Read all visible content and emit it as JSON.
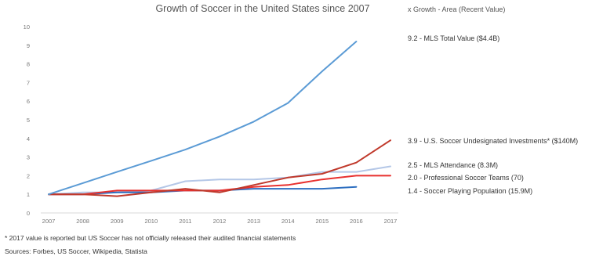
{
  "chart_data": {
    "type": "line",
    "title": "Growth of Soccer in the United States since 2007",
    "legend_header": "x Growth - Area (Recent Value)",
    "x": [
      "2007",
      "2008",
      "2009",
      "2010",
      "2011",
      "2012",
      "2013",
      "2014",
      "2015",
      "2016",
      "2017"
    ],
    "ylim": [
      0,
      10
    ],
    "yticks": [
      "0",
      "1",
      "2",
      "3",
      "4",
      "5",
      "6",
      "7",
      "8",
      "9",
      "10"
    ],
    "grid": false,
    "series": [
      {
        "name": "9.2 - MLS Total Value ($4.4B)",
        "color": "#5b9bd5",
        "values": [
          1.0,
          1.6,
          2.2,
          2.8,
          3.4,
          4.1,
          4.9,
          5.9,
          7.6,
          9.2,
          null
        ]
      },
      {
        "name": "3.9 - U.S. Soccer Undesignated Investments* ($140M)",
        "color": "#c0392b",
        "values": [
          1.0,
          1.0,
          0.9,
          1.1,
          1.3,
          1.1,
          1.5,
          1.9,
          2.1,
          2.7,
          3.9
        ]
      },
      {
        "name": "2.5 - MLS Attendance (8.3M)",
        "color": "#b4c7e7",
        "values": [
          1.0,
          1.1,
          1.1,
          1.2,
          1.7,
          1.8,
          1.8,
          1.9,
          2.2,
          2.2,
          2.5
        ]
      },
      {
        "name": "2.0 - Professional Soccer Teams (70)",
        "color": "#e8312f",
        "values": [
          1.0,
          1.0,
          1.2,
          1.2,
          1.2,
          1.2,
          1.4,
          1.5,
          1.8,
          2.0,
          2.0
        ]
      },
      {
        "name": "1.4 - Soccer Playing Population (15.9M)",
        "color": "#2e6fc0",
        "values": [
          1.0,
          1.0,
          1.1,
          1.1,
          1.2,
          1.2,
          1.3,
          1.3,
          1.3,
          1.4,
          null
        ]
      }
    ],
    "footnote": "* 2017 value is reported but US Soccer has not officially released their audited financial statements",
    "sources": "Sources: Forbes, US Soccer, Wikipedia, Statista"
  }
}
